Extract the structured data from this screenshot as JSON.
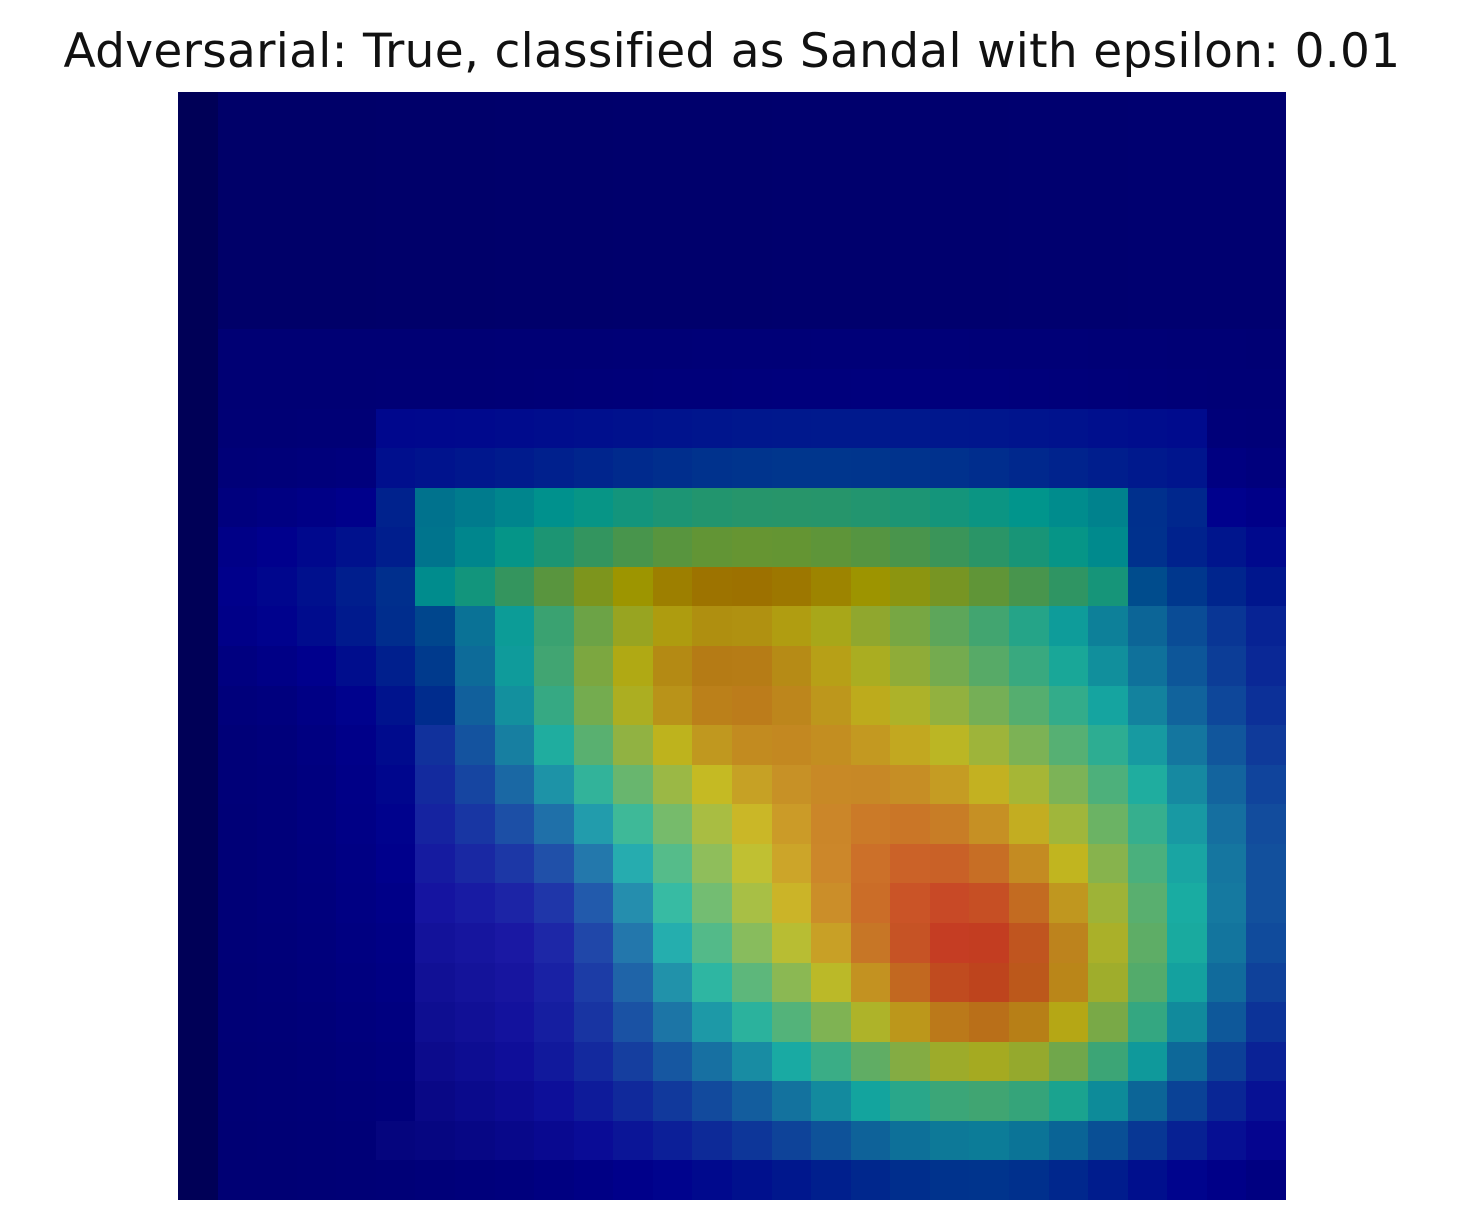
{
  "figure": {
    "title": "Adversarial: True, classified as Sandal with epsilon: 0.01"
  },
  "heatmap": {
    "colormap": "jet",
    "overlay": "grayscale input image blended with saliency heatmap",
    "rows": 28,
    "cols": 28,
    "palette": {
      "navy": "#00007a",
      "blue": "#1f3ca8",
      "teal": "#1d8f8a",
      "green": "#5a8e3a",
      "olive": "#8a7c1c",
      "yellow": "#dcd45a",
      "orange": "#e2a060",
      "red": "#d85454",
      "darkred": "#a83228"
    }
  }
}
